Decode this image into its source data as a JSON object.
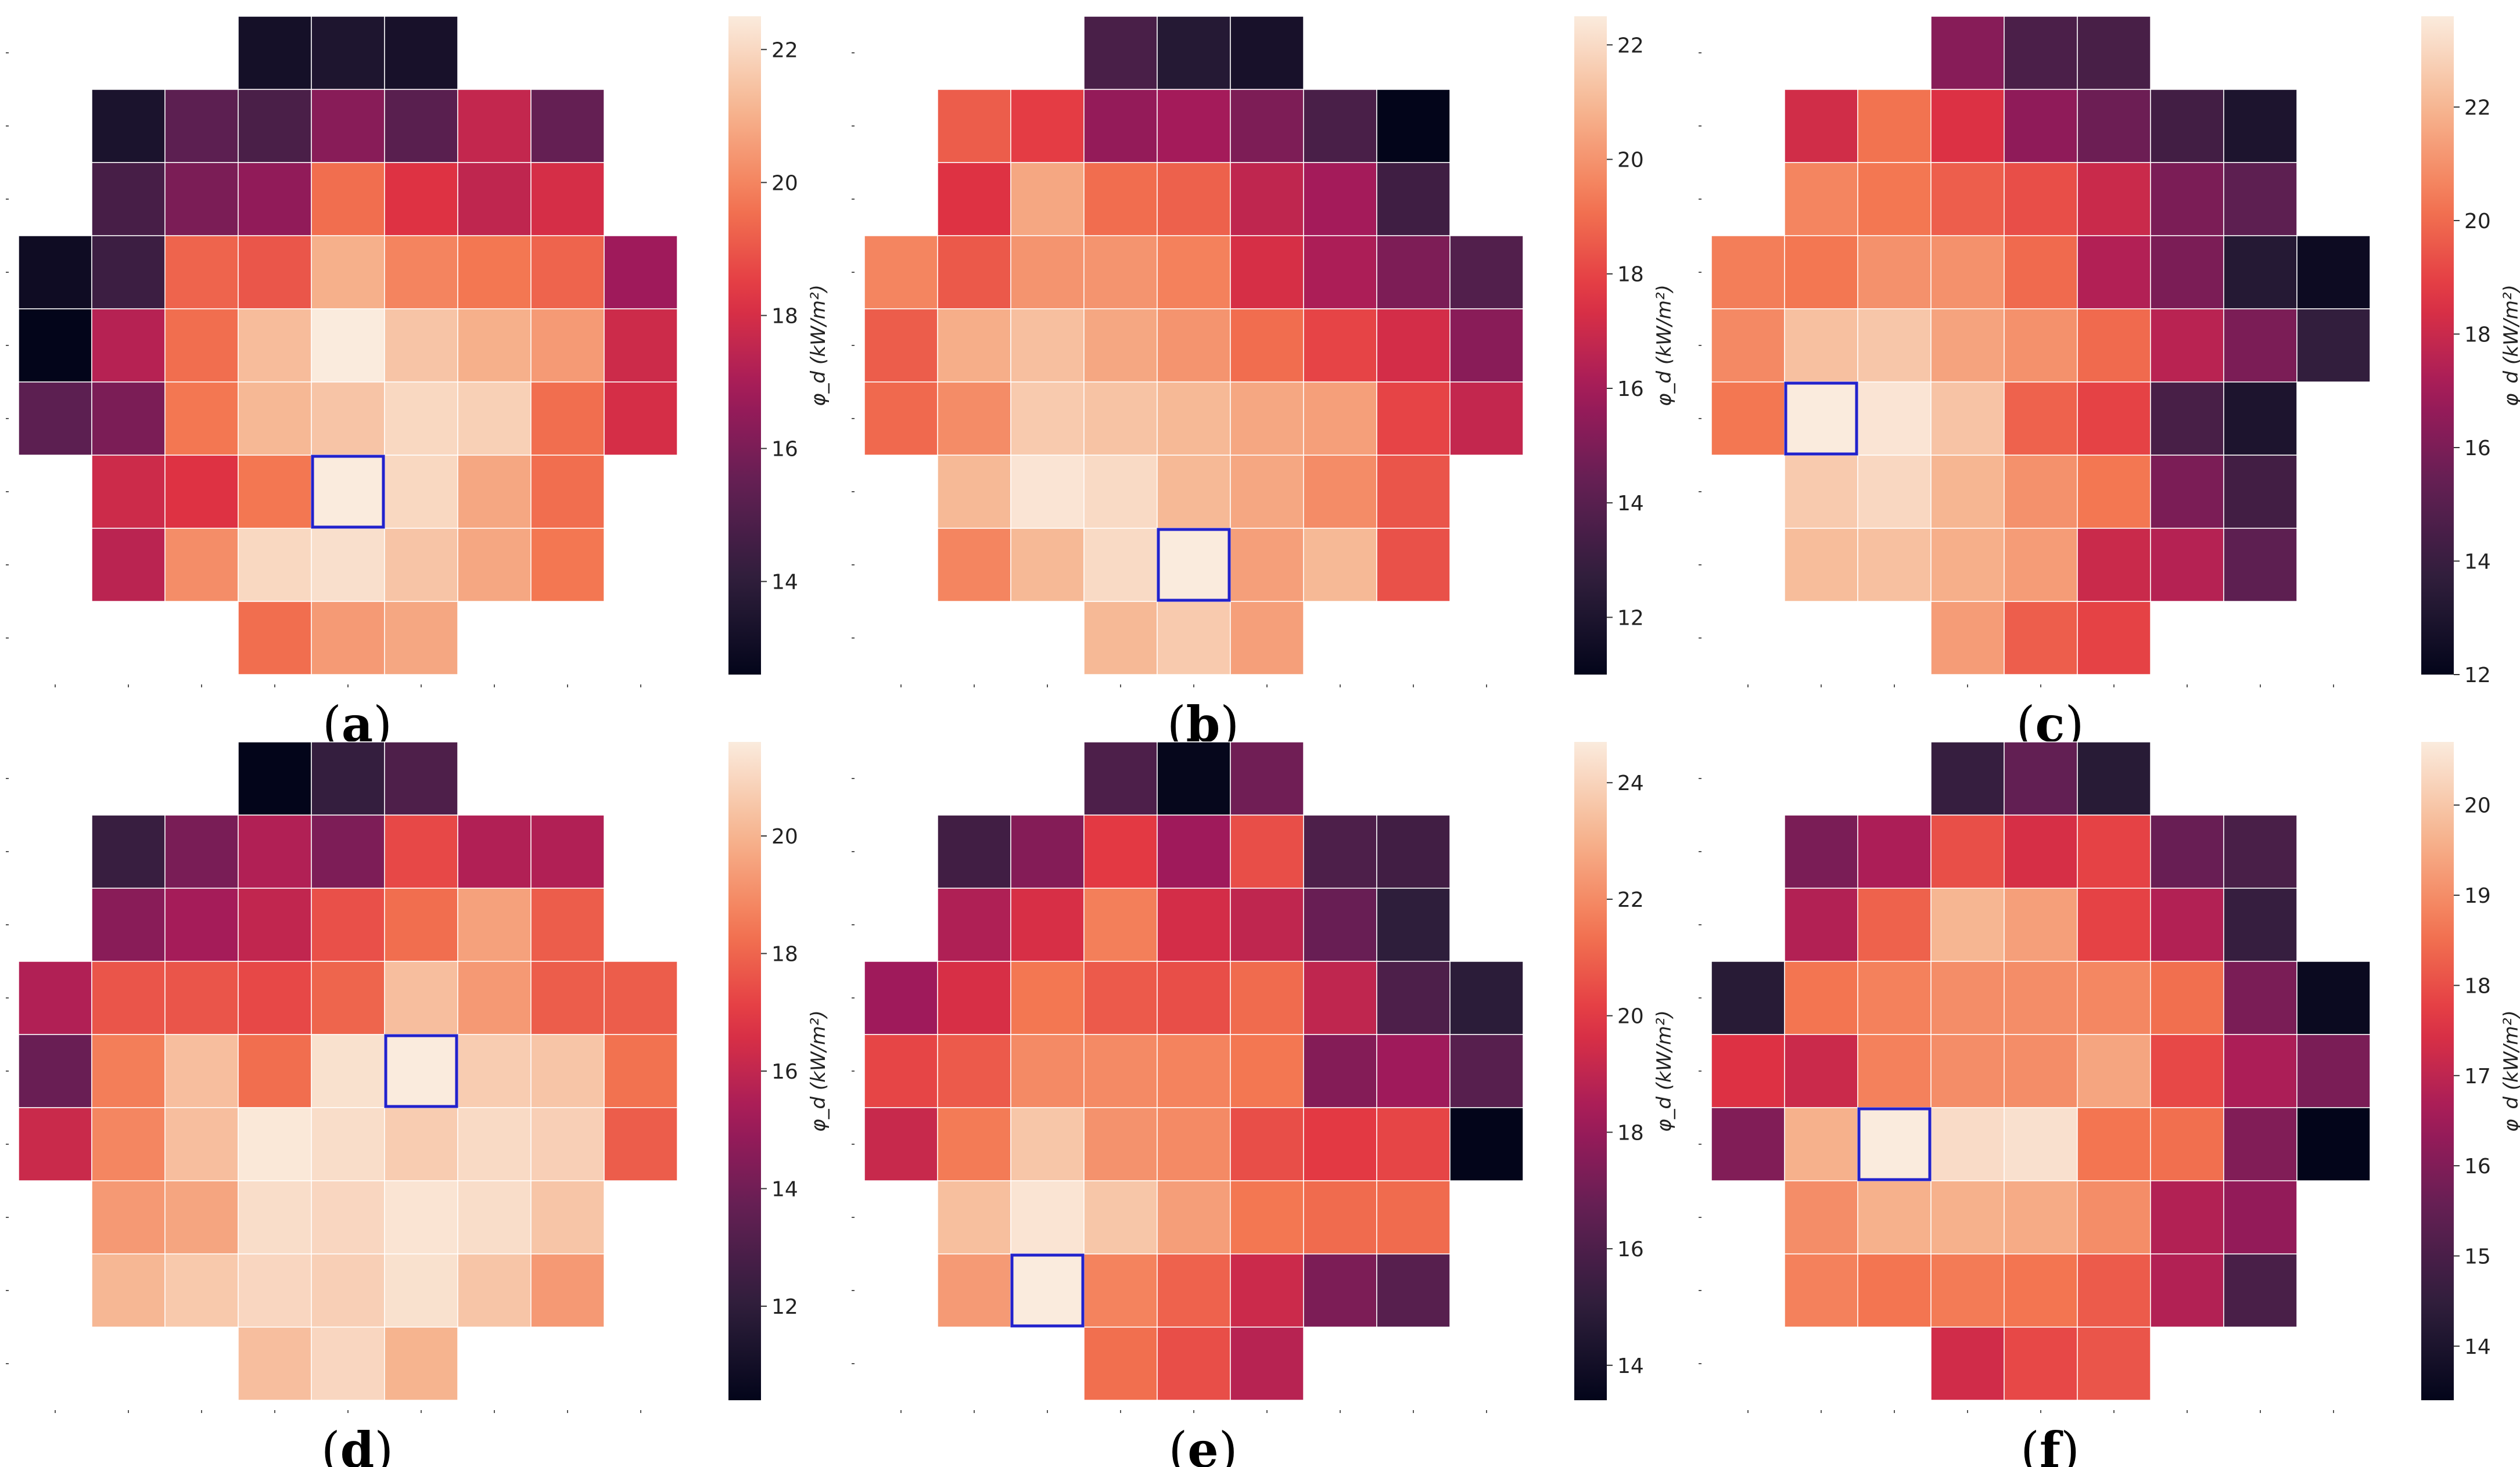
{
  "figure": {
    "colormap": "rocket",
    "colormap_stops": [
      "#03051a",
      "#2e1e3b",
      "#611f53",
      "#a11a5b",
      "#e13342",
      "#f37651",
      "#f6b48f",
      "#faebdd"
    ],
    "highlight_color": "#2222cc"
  },
  "chart_data": [
    {
      "type": "heatmap",
      "label": "(a)",
      "label_letter": "a",
      "colorbar_title": "φ_d (kW/m²)",
      "vmin": 12.6,
      "vmax": 22.5,
      "colorbar_ticks": [
        14,
        16,
        18,
        20,
        22
      ],
      "colorbar_tick_labels": [
        "14",
        "16",
        "18",
        "20",
        "22"
      ],
      "highlight": [
        6,
        4
      ],
      "grid": [
        [
          null,
          null,
          null,
          13.2,
          13.5,
          13.3,
          null,
          null,
          null
        ],
        [
          null,
          13.4,
          15.3,
          14.8,
          16.3,
          15.2,
          17.6,
          15.5,
          null
        ],
        [
          null,
          14.7,
          16.0,
          16.5,
          19.5,
          18.2,
          17.5,
          18.0,
          null
        ],
        [
          13.0,
          14.4,
          19.3,
          19.0,
          21.0,
          20.0,
          19.7,
          19.3,
          16.8
        ],
        [
          12.6,
          17.3,
          19.5,
          21.3,
          22.5,
          21.5,
          21.0,
          20.5,
          17.8
        ],
        [
          15.3,
          16.0,
          19.7,
          21.2,
          21.5,
          22.0,
          21.8,
          19.5,
          18.0
        ],
        [
          null,
          17.8,
          18.2,
          19.7,
          22.5,
          22.0,
          20.8,
          19.5,
          null
        ],
        [
          null,
          17.4,
          20.2,
          22.0,
          22.2,
          21.5,
          20.8,
          19.7,
          null
        ],
        [
          null,
          null,
          null,
          19.5,
          20.5,
          20.8,
          null,
          null,
          null
        ]
      ]
    },
    {
      "type": "heatmap",
      "label": "(b)",
      "label_letter": "b",
      "colorbar_title": "φ_d (kW/m²)",
      "vmin": 11.0,
      "vmax": 22.5,
      "colorbar_ticks": [
        12,
        14,
        16,
        18,
        20,
        22
      ],
      "colorbar_tick_labels": [
        "12",
        "14",
        "16",
        "18",
        "20",
        "22"
      ],
      "highlight": [
        7,
        4
      ],
      "grid": [
        [
          null,
          null,
          null,
          13.5,
          12.3,
          11.8,
          null,
          null,
          null
        ],
        [
          null,
          18.6,
          17.8,
          15.6,
          16.0,
          15.0,
          13.5,
          11.0,
          null
        ],
        [
          null,
          17.5,
          20.5,
          19.0,
          18.7,
          16.7,
          16.0,
          13.2,
          null
        ],
        [
          19.6,
          18.5,
          20.0,
          20.0,
          19.5,
          17.3,
          16.2,
          15.0,
          13.8
        ],
        [
          18.6,
          20.7,
          21.2,
          20.5,
          20.0,
          19.0,
          18.0,
          17.2,
          15.3
        ],
        [
          18.9,
          19.8,
          21.5,
          21.3,
          21.0,
          20.5,
          20.3,
          18.0,
          16.8
        ],
        [
          null,
          21.0,
          22.3,
          22.0,
          21.0,
          20.5,
          19.8,
          18.4,
          null
        ],
        [
          null,
          19.6,
          21.0,
          22.0,
          22.5,
          20.3,
          21.0,
          18.3,
          null
        ],
        [
          null,
          null,
          null,
          21.0,
          21.5,
          20.3,
          null,
          null,
          null
        ]
      ]
    },
    {
      "type": "heatmap",
      "label": "(c)",
      "label_letter": "c",
      "colorbar_title": "φ_d (kW/m²)",
      "vmin": 12.0,
      "vmax": 23.6,
      "colorbar_ticks": [
        12,
        14,
        16,
        18,
        20,
        22
      ],
      "colorbar_tick_labels": [
        "12",
        "14",
        "16",
        "18",
        "20",
        "22"
      ],
      "highlight": [
        5,
        1
      ],
      "grid": [
        [
          null,
          null,
          null,
          16.3,
          14.6,
          14.5,
          null,
          null,
          null
        ],
        [
          null,
          18.2,
          20.2,
          18.5,
          16.5,
          15.6,
          14.3,
          13.0,
          null
        ],
        [
          null,
          20.7,
          20.3,
          19.7,
          19.3,
          18.0,
          16.0,
          15.2,
          null
        ],
        [
          20.5,
          20.3,
          21.0,
          21.0,
          20.0,
          17.4,
          16.0,
          13.3,
          12.4
        ],
        [
          20.8,
          22.3,
          22.5,
          21.5,
          21.0,
          20.0,
          17.6,
          16.0,
          13.8
        ],
        [
          20.3,
          23.6,
          23.4,
          22.4,
          19.8,
          19.0,
          14.5,
          13.0,
          null
        ],
        [
          null,
          22.6,
          23.0,
          22.0,
          21.0,
          20.3,
          16.0,
          14.3,
          null
        ],
        [
          null,
          22.2,
          22.3,
          21.8,
          21.3,
          18.0,
          17.5,
          15.2,
          null
        ],
        [
          null,
          null,
          null,
          21.3,
          19.7,
          19.0,
          null,
          null,
          null
        ]
      ]
    },
    {
      "type": "heatmap",
      "label": "(d)",
      "label_letter": "d",
      "colorbar_title": "φ_d (kW/m²)",
      "vmin": 10.4,
      "vmax": 21.6,
      "colorbar_ticks": [
        12,
        14,
        16,
        18,
        20
      ],
      "colorbar_tick_labels": [
        "12",
        "14",
        "16",
        "18",
        "20"
      ],
      "highlight": [
        4,
        5
      ],
      "grid": [
        [
          null,
          null,
          null,
          10.4,
          12.2,
          13.0,
          null,
          null,
          null
        ],
        [
          null,
          12.3,
          14.2,
          15.6,
          14.3,
          17.3,
          15.6,
          15.6,
          null
        ],
        [
          null,
          14.6,
          15.3,
          16.0,
          17.5,
          18.2,
          19.5,
          17.8,
          null
        ],
        [
          15.6,
          17.6,
          17.6,
          17.3,
          18.0,
          20.3,
          19.3,
          17.8,
          17.8
        ],
        [
          13.8,
          18.6,
          20.3,
          18.2,
          21.3,
          21.6,
          20.7,
          20.5,
          18.3
        ],
        [
          16.2,
          18.8,
          20.3,
          21.5,
          21.2,
          20.7,
          21.1,
          20.8,
          17.8
        ],
        [
          null,
          19.3,
          19.6,
          21.2,
          21.0,
          21.4,
          21.2,
          20.5,
          null
        ],
        [
          null,
          20.1,
          20.6,
          21.0,
          20.8,
          21.3,
          20.5,
          19.3,
          null
        ],
        [
          null,
          null,
          null,
          20.3,
          21.0,
          20.0,
          null,
          null,
          null
        ]
      ]
    },
    {
      "type": "heatmap",
      "label": "(e)",
      "label_letter": "e",
      "colorbar_title": "φ_d (kW/m²)",
      "vmin": 13.4,
      "vmax": 24.7,
      "colorbar_ticks": [
        14,
        16,
        18,
        20,
        22,
        24
      ],
      "colorbar_tick_labels": [
        "14",
        "16",
        "18",
        "20",
        "22",
        "24"
      ],
      "highlight": [
        7,
        2
      ],
      "grid": [
        [
          null,
          null,
          null,
          16.0,
          13.5,
          17.0,
          null,
          null,
          null
        ],
        [
          null,
          15.6,
          17.5,
          20.0,
          18.2,
          20.5,
          16.0,
          15.6,
          null
        ],
        [
          null,
          18.6,
          19.6,
          21.7,
          19.5,
          19.0,
          16.8,
          15.0,
          null
        ],
        [
          18.2,
          19.6,
          21.5,
          20.8,
          20.5,
          21.2,
          19.0,
          16.0,
          14.9
        ],
        [
          20.3,
          20.8,
          22.0,
          22.0,
          21.8,
          21.5,
          17.5,
          18.2,
          16.3
        ],
        [
          19.2,
          21.6,
          23.6,
          22.2,
          22.0,
          20.5,
          20.0,
          20.3,
          13.4
        ],
        [
          null,
          23.4,
          24.5,
          23.6,
          22.5,
          21.5,
          21.2,
          21.2,
          null
        ],
        [
          null,
          22.4,
          24.7,
          21.8,
          21.0,
          19.3,
          17.3,
          16.3,
          null
        ],
        [
          null,
          null,
          null,
          21.3,
          20.5,
          18.8,
          null,
          null,
          null
        ]
      ]
    },
    {
      "type": "heatmap",
      "label": "(f)",
      "label_letter": "f",
      "colorbar_title": "φ_d (kW/m²)",
      "vmin": 13.4,
      "vmax": 20.7,
      "colorbar_ticks": [
        14,
        15,
        16,
        17,
        18,
        19,
        20
      ],
      "colorbar_tick_labels": [
        "14",
        "15",
        "16",
        "17",
        "18",
        "19",
        "20"
      ],
      "highlight": [
        5,
        2
      ],
      "grid": [
        [
          null,
          null,
          null,
          14.6,
          15.5,
          14.3,
          null,
          null,
          null
        ],
        [
          null,
          15.9,
          16.7,
          18.0,
          17.4,
          17.8,
          15.6,
          15.0,
          null
        ],
        [
          null,
          16.8,
          18.3,
          19.7,
          19.3,
          17.8,
          16.8,
          14.6,
          null
        ],
        [
          14.3,
          18.6,
          18.8,
          19.0,
          19.0,
          18.9,
          18.5,
          15.9,
          13.6
        ],
        [
          17.5,
          17.2,
          18.8,
          19.0,
          19.0,
          19.4,
          17.9,
          16.7,
          15.9
        ],
        [
          16.0,
          19.6,
          20.7,
          20.4,
          20.5,
          18.6,
          18.5,
          16.0,
          13.4
        ],
        [
          null,
          19.0,
          19.6,
          19.6,
          19.5,
          19.0,
          16.8,
          16.3,
          null
        ],
        [
          null,
          18.8,
          18.6,
          18.7,
          18.6,
          18.2,
          16.8,
          15.0,
          null
        ],
        [
          null,
          null,
          null,
          17.3,
          17.9,
          18.1,
          null,
          null,
          null
        ]
      ]
    }
  ]
}
